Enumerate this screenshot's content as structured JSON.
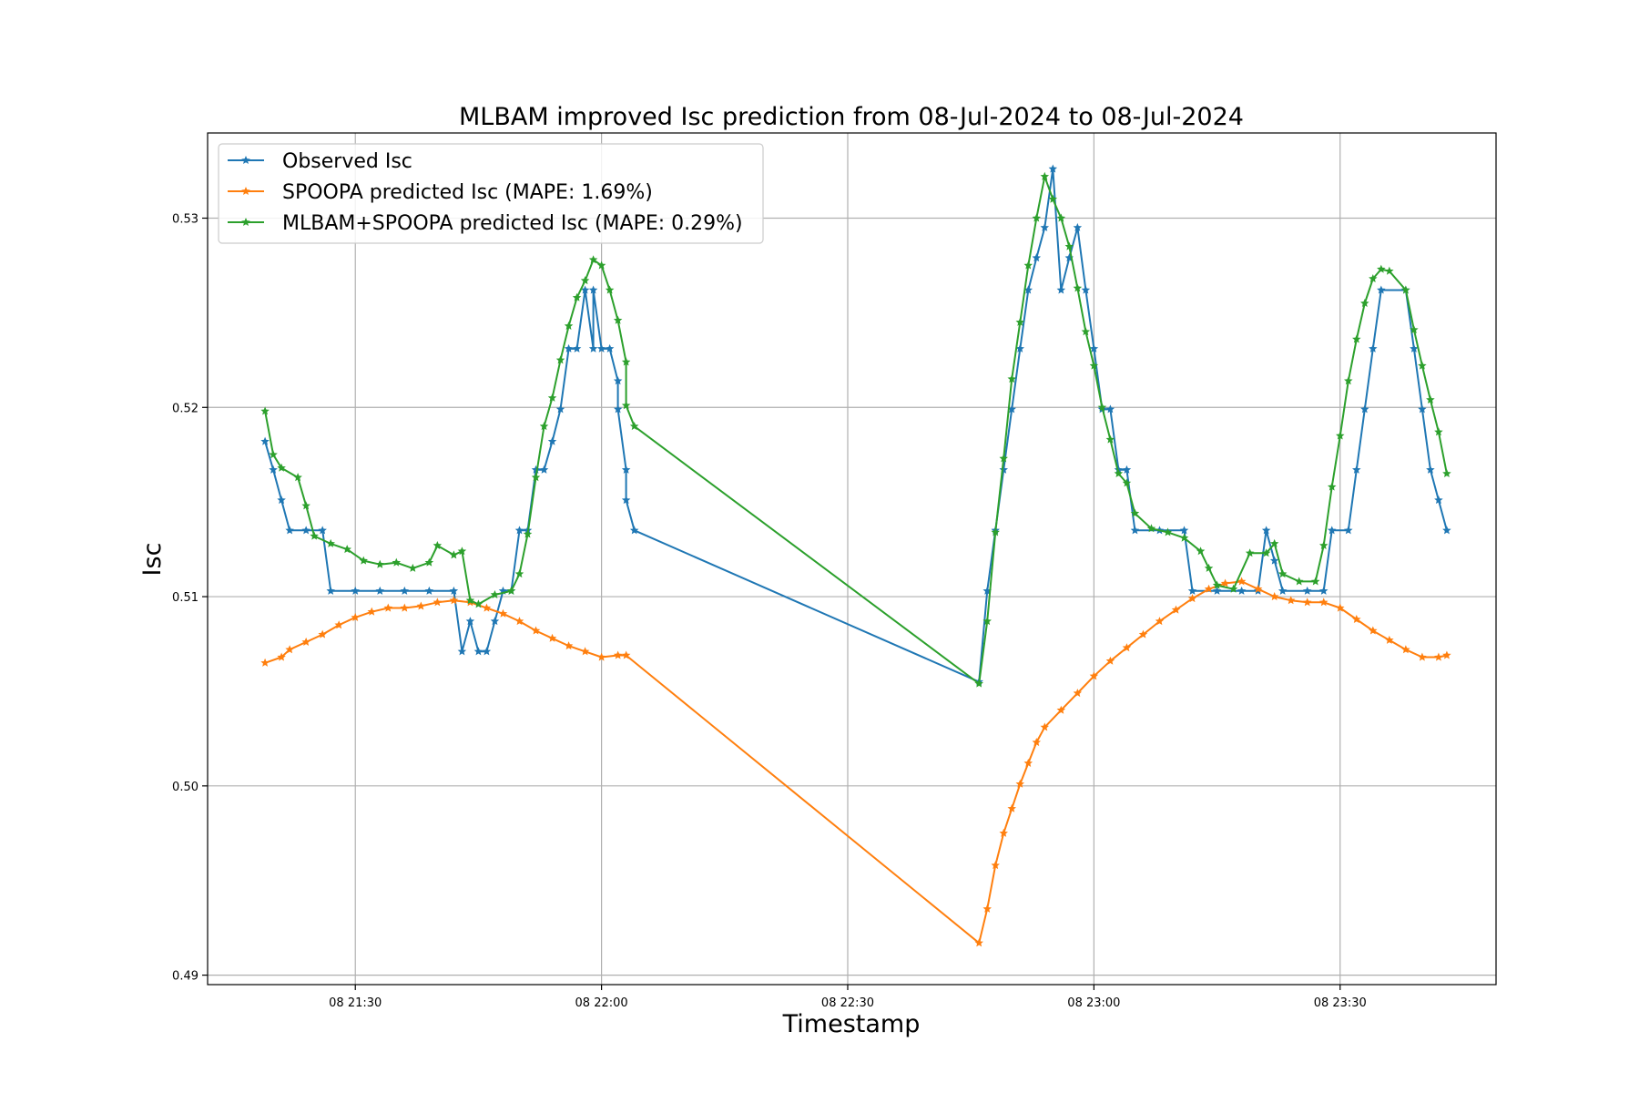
{
  "chart_data": {
    "type": "line",
    "title": "MLBAM improved Isc prediction from 08-Jul-2024 to 08-Jul-2024",
    "xlabel": "Timestamp",
    "ylabel": "Isc",
    "grid": true,
    "legend_placement": "top-left",
    "marker": "star",
    "x_unit": "time of day on 08 Jul 2024 (HH:MM)",
    "xlim": [
      "21:12",
      "23:49"
    ],
    "ylim": [
      0.4895,
      0.5345
    ],
    "x_ticks": [
      {
        "value": "21:30",
        "label": "08 21:30"
      },
      {
        "value": "22:00",
        "label": "08 22:00"
      },
      {
        "value": "22:30",
        "label": "08 22:30"
      },
      {
        "value": "23:00",
        "label": "08 23:00"
      },
      {
        "value": "23:30",
        "label": "08 23:30"
      }
    ],
    "y_ticks": [
      {
        "value": 0.49,
        "label": "0.49"
      },
      {
        "value": 0.5,
        "label": "0.50"
      },
      {
        "value": 0.51,
        "label": "0.51"
      },
      {
        "value": 0.52,
        "label": "0.52"
      },
      {
        "value": 0.53,
        "label": "0.53"
      }
    ],
    "series": [
      {
        "name": "Observed Isc",
        "color": "#1f77b4",
        "points": [
          [
            "21:19",
            0.5182
          ],
          [
            "21:20",
            0.5167
          ],
          [
            "21:21",
            0.5151
          ],
          [
            "21:22",
            0.5135
          ],
          [
            "21:24",
            0.5135
          ],
          [
            "21:26",
            0.5135
          ],
          [
            "21:27",
            0.5103
          ],
          [
            "21:30",
            0.5103
          ],
          [
            "21:33",
            0.5103
          ],
          [
            "21:36",
            0.5103
          ],
          [
            "21:39",
            0.5103
          ],
          [
            "21:42",
            0.5103
          ],
          [
            "21:43",
            0.5071
          ],
          [
            "21:44",
            0.5087
          ],
          [
            "21:45",
            0.5071
          ],
          [
            "21:46",
            0.5071
          ],
          [
            "21:47",
            0.5087
          ],
          [
            "21:48",
            0.5103
          ],
          [
            "21:49",
            0.5103
          ],
          [
            "21:50",
            0.5135
          ],
          [
            "21:51",
            0.5135
          ],
          [
            "21:52",
            0.5167
          ],
          [
            "21:53",
            0.5167
          ],
          [
            "21:54",
            0.5182
          ],
          [
            "21:55",
            0.5199
          ],
          [
            "21:56",
            0.5231
          ],
          [
            "21:57",
            0.5231
          ],
          [
            "21:58",
            0.5262
          ],
          [
            "21:59",
            0.5231
          ],
          [
            "21:59",
            0.5262
          ],
          [
            "22:00",
            0.5231
          ],
          [
            "22:01",
            0.5231
          ],
          [
            "22:02",
            0.5214
          ],
          [
            "22:02",
            0.5199
          ],
          [
            "22:03",
            0.5167
          ],
          [
            "22:03",
            0.5151
          ],
          [
            "22:04",
            0.5135
          ],
          [
            "22:46",
            0.5055
          ],
          [
            "22:47",
            0.5103
          ],
          [
            "22:48",
            0.5135
          ],
          [
            "22:49",
            0.5167
          ],
          [
            "22:50",
            0.5199
          ],
          [
            "22:51",
            0.5231
          ],
          [
            "22:52",
            0.5262
          ],
          [
            "22:53",
            0.5279
          ],
          [
            "22:54",
            0.5295
          ],
          [
            "22:55",
            0.5326
          ],
          [
            "22:56",
            0.5262
          ],
          [
            "22:57",
            0.5279
          ],
          [
            "22:58",
            0.5295
          ],
          [
            "22:59",
            0.5262
          ],
          [
            "23:00",
            0.5231
          ],
          [
            "23:01",
            0.5199
          ],
          [
            "23:02",
            0.5199
          ],
          [
            "23:03",
            0.5167
          ],
          [
            "23:04",
            0.5167
          ],
          [
            "23:05",
            0.5135
          ],
          [
            "23:08",
            0.5135
          ],
          [
            "23:11",
            0.5135
          ],
          [
            "23:12",
            0.5103
          ],
          [
            "23:15",
            0.5103
          ],
          [
            "23:18",
            0.5103
          ],
          [
            "23:20",
            0.5103
          ],
          [
            "23:21",
            0.5135
          ],
          [
            "23:22",
            0.5119
          ],
          [
            "23:23",
            0.5103
          ],
          [
            "23:26",
            0.5103
          ],
          [
            "23:28",
            0.5103
          ],
          [
            "23:29",
            0.5135
          ],
          [
            "23:31",
            0.5135
          ],
          [
            "23:32",
            0.5167
          ],
          [
            "23:33",
            0.5199
          ],
          [
            "23:34",
            0.5231
          ],
          [
            "23:35",
            0.5262
          ],
          [
            "23:38",
            0.5262
          ],
          [
            "23:39",
            0.5231
          ],
          [
            "23:40",
            0.5199
          ],
          [
            "23:41",
            0.5167
          ],
          [
            "23:42",
            0.5151
          ],
          [
            "23:43",
            0.5135
          ]
        ]
      },
      {
        "name": "SPOOPA predicted Isc (MAPE: 1.69%)",
        "color": "#ff7f0e",
        "points": [
          [
            "21:19",
            0.5065
          ],
          [
            "21:21",
            0.5068
          ],
          [
            "21:22",
            0.5072
          ],
          [
            "21:24",
            0.5076
          ],
          [
            "21:26",
            0.508
          ],
          [
            "21:28",
            0.5085
          ],
          [
            "21:30",
            0.5089
          ],
          [
            "21:32",
            0.5092
          ],
          [
            "21:34",
            0.5094
          ],
          [
            "21:36",
            0.5094
          ],
          [
            "21:38",
            0.5095
          ],
          [
            "21:40",
            0.5097
          ],
          [
            "21:42",
            0.5098
          ],
          [
            "21:44",
            0.5097
          ],
          [
            "21:46",
            0.5094
          ],
          [
            "21:48",
            0.5091
          ],
          [
            "21:50",
            0.5087
          ],
          [
            "21:52",
            0.5082
          ],
          [
            "21:54",
            0.5078
          ],
          [
            "21:56",
            0.5074
          ],
          [
            "21:58",
            0.5071
          ],
          [
            "22:00",
            0.5068
          ],
          [
            "22:02",
            0.5069
          ],
          [
            "22:03",
            0.5069
          ],
          [
            "22:46",
            0.4917
          ],
          [
            "22:47",
            0.4935
          ],
          [
            "22:48",
            0.4958
          ],
          [
            "22:49",
            0.4975
          ],
          [
            "22:50",
            0.4988
          ],
          [
            "22:51",
            0.5001
          ],
          [
            "22:52",
            0.5012
          ],
          [
            "22:53",
            0.5023
          ],
          [
            "22:54",
            0.5031
          ],
          [
            "22:56",
            0.504
          ],
          [
            "22:58",
            0.5049
          ],
          [
            "23:00",
            0.5058
          ],
          [
            "23:02",
            0.5066
          ],
          [
            "23:04",
            0.5073
          ],
          [
            "23:06",
            0.508
          ],
          [
            "23:08",
            0.5087
          ],
          [
            "23:10",
            0.5093
          ],
          [
            "23:12",
            0.5099
          ],
          [
            "23:14",
            0.5104
          ],
          [
            "23:16",
            0.5107
          ],
          [
            "23:18",
            0.5108
          ],
          [
            "23:20",
            0.5104
          ],
          [
            "23:22",
            0.51
          ],
          [
            "23:24",
            0.5098
          ],
          [
            "23:26",
            0.5097
          ],
          [
            "23:28",
            0.5097
          ],
          [
            "23:30",
            0.5094
          ],
          [
            "23:32",
            0.5088
          ],
          [
            "23:34",
            0.5082
          ],
          [
            "23:36",
            0.5077
          ],
          [
            "23:38",
            0.5072
          ],
          [
            "23:40",
            0.5068
          ],
          [
            "23:42",
            0.5068
          ],
          [
            "23:43",
            0.5069
          ]
        ]
      },
      {
        "name": "MLBAM+SPOOPA predicted Isc (MAPE: 0.29%)",
        "color": "#2ca02c",
        "points": [
          [
            "21:19",
            0.5198
          ],
          [
            "21:20",
            0.5175
          ],
          [
            "21:21",
            0.5168
          ],
          [
            "21:23",
            0.5163
          ],
          [
            "21:24",
            0.5148
          ],
          [
            "21:25",
            0.5132
          ],
          [
            "21:27",
            0.5128
          ],
          [
            "21:29",
            0.5125
          ],
          [
            "21:31",
            0.5119
          ],
          [
            "21:33",
            0.5117
          ],
          [
            "21:35",
            0.5118
          ],
          [
            "21:37",
            0.5115
          ],
          [
            "21:39",
            0.5118
          ],
          [
            "21:40",
            0.5127
          ],
          [
            "21:42",
            0.5122
          ],
          [
            "21:43",
            0.5124
          ],
          [
            "21:44",
            0.5098
          ],
          [
            "21:45",
            0.5096
          ],
          [
            "21:47",
            0.5101
          ],
          [
            "21:49",
            0.5103
          ],
          [
            "21:50",
            0.5112
          ],
          [
            "21:51",
            0.5133
          ],
          [
            "21:52",
            0.5163
          ],
          [
            "21:53",
            0.519
          ],
          [
            "21:54",
            0.5205
          ],
          [
            "21:55",
            0.5225
          ],
          [
            "21:56",
            0.5243
          ],
          [
            "21:57",
            0.5258
          ],
          [
            "21:58",
            0.5267
          ],
          [
            "21:59",
            0.5278
          ],
          [
            "22:00",
            0.5275
          ],
          [
            "22:01",
            0.5262
          ],
          [
            "22:02",
            0.5246
          ],
          [
            "22:03",
            0.5224
          ],
          [
            "22:03",
            0.5201
          ],
          [
            "22:04",
            0.519
          ],
          [
            "22:46",
            0.5054
          ],
          [
            "22:47",
            0.5087
          ],
          [
            "22:48",
            0.5134
          ],
          [
            "22:49",
            0.5173
          ],
          [
            "22:50",
            0.5215
          ],
          [
            "22:51",
            0.5245
          ],
          [
            "22:52",
            0.5275
          ],
          [
            "22:53",
            0.53
          ],
          [
            "22:54",
            0.5322
          ],
          [
            "22:55",
            0.531
          ],
          [
            "22:56",
            0.53
          ],
          [
            "22:57",
            0.5285
          ],
          [
            "22:58",
            0.5263
          ],
          [
            "22:59",
            0.524
          ],
          [
            "23:00",
            0.5222
          ],
          [
            "23:01",
            0.52
          ],
          [
            "23:02",
            0.5183
          ],
          [
            "23:03",
            0.5165
          ],
          [
            "23:04",
            0.516
          ],
          [
            "23:05",
            0.5144
          ],
          [
            "23:07",
            0.5136
          ],
          [
            "23:09",
            0.5134
          ],
          [
            "23:11",
            0.5131
          ],
          [
            "23:13",
            0.5124
          ],
          [
            "23:14",
            0.5115
          ],
          [
            "23:15",
            0.5106
          ],
          [
            "23:17",
            0.5104
          ],
          [
            "23:19",
            0.5123
          ],
          [
            "23:21",
            0.5123
          ],
          [
            "23:22",
            0.5128
          ],
          [
            "23:23",
            0.5112
          ],
          [
            "23:25",
            0.5108
          ],
          [
            "23:27",
            0.5108
          ],
          [
            "23:28",
            0.5127
          ],
          [
            "23:29",
            0.5158
          ],
          [
            "23:30",
            0.5185
          ],
          [
            "23:31",
            0.5214
          ],
          [
            "23:32",
            0.5236
          ],
          [
            "23:33",
            0.5255
          ],
          [
            "23:34",
            0.5268
          ],
          [
            "23:35",
            0.5273
          ],
          [
            "23:36",
            0.5272
          ],
          [
            "23:38",
            0.5262
          ],
          [
            "23:39",
            0.5241
          ],
          [
            "23:40",
            0.5222
          ],
          [
            "23:41",
            0.5204
          ],
          [
            "23:42",
            0.5187
          ],
          [
            "23:43",
            0.5165
          ]
        ]
      }
    ]
  }
}
